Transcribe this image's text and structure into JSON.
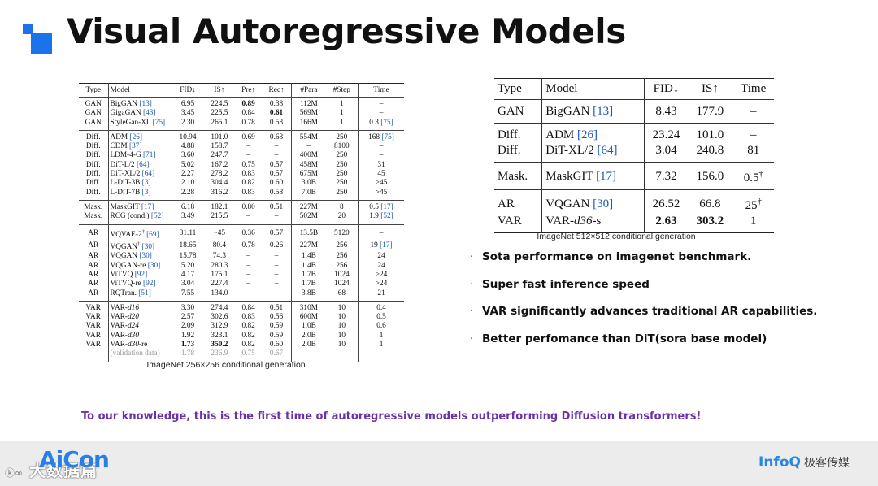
{
  "title": "Visual Autoregressive Models",
  "left_table": {
    "headers": [
      "Type",
      "Model",
      "FID↓",
      "IS↑",
      "Pre↑",
      "Rec↑",
      "#Para",
      "#Step",
      "Time"
    ],
    "groups": [
      [
        {
          "type": "GAN",
          "model": "BigGAN",
          "cite": "[13]",
          "fid": "6.95",
          "is": "224.5",
          "pre": "0.89",
          "rec": "0.38",
          "para": "112M",
          "step": "1",
          "time": "–",
          "time_cite": ""
        },
        {
          "type": "GAN",
          "model": "GigaGAN",
          "cite": "[43]",
          "fid": "3.45",
          "is": "225.5",
          "pre": "0.84",
          "rec": "0.61",
          "para": "569M",
          "step": "1",
          "time": "–",
          "time_cite": ""
        },
        {
          "type": "GAN",
          "model": "StyleGan-XL",
          "cite": "[75]",
          "fid": "2.30",
          "is": "265.1",
          "pre": "0.78",
          "rec": "0.53",
          "para": "166M",
          "step": "1",
          "time": "0.3",
          "time_cite": "[75]"
        }
      ],
      [
        {
          "type": "Diff.",
          "model": "ADM",
          "cite": "[26]",
          "fid": "10.94",
          "is": "101.0",
          "pre": "0.69",
          "rec": "0.63",
          "para": "554M",
          "step": "250",
          "time": "168",
          "time_cite": "[75]"
        },
        {
          "type": "Diff.",
          "model": "CDM",
          "cite": "[37]",
          "fid": "4.88",
          "is": "158.7",
          "pre": "–",
          "rec": "–",
          "para": "–",
          "step": "8100",
          "time": "–",
          "time_cite": ""
        },
        {
          "type": "Diff.",
          "model": "LDM-4-G",
          "cite": "[71]",
          "fid": "3.60",
          "is": "247.7",
          "pre": "–",
          "rec": "–",
          "para": "400M",
          "step": "250",
          "time": "–",
          "time_cite": ""
        },
        {
          "type": "Diff.",
          "model": "DiT-L/2",
          "cite": "[64]",
          "fid": "5.02",
          "is": "167.2",
          "pre": "0.75",
          "rec": "0.57",
          "para": "458M",
          "step": "250",
          "time": "31",
          "time_cite": ""
        },
        {
          "type": "Diff.",
          "model": "DiT-XL/2",
          "cite": "[64]",
          "fid": "2.27",
          "is": "278.2",
          "pre": "0.83",
          "rec": "0.57",
          "para": "675M",
          "step": "250",
          "time": "45",
          "time_cite": ""
        },
        {
          "type": "Diff.",
          "model": "L-DiT-3B",
          "cite": "[3]",
          "fid": "2.10",
          "is": "304.4",
          "pre": "0.82",
          "rec": "0.60",
          "para": "3.0B",
          "step": "250",
          "time": ">45",
          "time_cite": ""
        },
        {
          "type": "Diff.",
          "model": "L-DiT-7B",
          "cite": "[3]",
          "fid": "2.28",
          "is": "316.2",
          "pre": "0.83",
          "rec": "0.58",
          "para": "7.0B",
          "step": "250",
          "time": ">45",
          "time_cite": ""
        }
      ],
      [
        {
          "type": "Mask.",
          "model": "MaskGIT",
          "cite": "[17]",
          "fid": "6.18",
          "is": "182.1",
          "pre": "0.80",
          "rec": "0.51",
          "para": "227M",
          "step": "8",
          "time": "0.5",
          "time_cite": "[17]"
        },
        {
          "type": "Mask.",
          "model": "RCG (cond.)",
          "cite": "[52]",
          "fid": "3.49",
          "is": "215.5",
          "pre": "–",
          "rec": "–",
          "para": "502M",
          "step": "20",
          "time": "1.9",
          "time_cite": "[52]"
        }
      ],
      [
        {
          "type": "AR",
          "model": "VQVAE-2",
          "sup": "†",
          "cite": "[69]",
          "fid": "31.11",
          "is": "~45",
          "pre": "0.36",
          "rec": "0.57",
          "para": "13.5B",
          "step": "5120",
          "time": "–",
          "time_cite": ""
        },
        {
          "type": "AR",
          "model": "VQGAN",
          "sup": "†",
          "cite": "[30]",
          "fid": "18.65",
          "is": "80.4",
          "pre": "0.78",
          "rec": "0.26",
          "para": "227M",
          "step": "256",
          "time": "19",
          "time_cite": "[17]"
        },
        {
          "type": "AR",
          "model": "VQGAN",
          "cite": "[30]",
          "fid": "15.78",
          "is": "74.3",
          "pre": "–",
          "rec": "–",
          "para": "1.4B",
          "step": "256",
          "time": "24",
          "time_cite": ""
        },
        {
          "type": "AR",
          "model": "VQGAN-re",
          "cite": "[30]",
          "fid": "5.20",
          "is": "280.3",
          "pre": "–",
          "rec": "–",
          "para": "1.4B",
          "step": "256",
          "time": "24",
          "time_cite": ""
        },
        {
          "type": "AR",
          "model": "ViTVQ",
          "cite": "[92]",
          "fid": "4.17",
          "is": "175.1",
          "pre": "–",
          "rec": "–",
          "para": "1.7B",
          "step": "1024",
          "time": ">24",
          "time_cite": ""
        },
        {
          "type": "AR",
          "model": "ViTVQ-re",
          "cite": "[92]",
          "fid": "3.04",
          "is": "227.4",
          "pre": "–",
          "rec": "–",
          "para": "1.7B",
          "step": "1024",
          "time": ">24",
          "time_cite": ""
        },
        {
          "type": "AR",
          "model": "RQTran.",
          "cite": "[51]",
          "fid": "7.55",
          "is": "134.0",
          "pre": "–",
          "rec": "–",
          "para": "3.8B",
          "step": "68",
          "time": "21",
          "time_cite": ""
        }
      ],
      [
        {
          "type": "VAR",
          "model": "VAR-",
          "model_it": "d16",
          "fid": "3.30",
          "is": "274.4",
          "pre": "0.84",
          "rec": "0.51",
          "para": "310M",
          "step": "10",
          "time": "0.4",
          "time_cite": ""
        },
        {
          "type": "VAR",
          "model": "VAR-",
          "model_it": "d20",
          "fid": "2.57",
          "is": "302.6",
          "pre": "0.83",
          "rec": "0.56",
          "para": "600M",
          "step": "10",
          "time": "0.5",
          "time_cite": ""
        },
        {
          "type": "VAR",
          "model": "VAR-",
          "model_it": "d24",
          "fid": "2.09",
          "is": "312.9",
          "pre": "0.82",
          "rec": "0.59",
          "para": "1.0B",
          "step": "10",
          "time": "0.6",
          "time_cite": ""
        },
        {
          "type": "VAR",
          "model": "VAR-",
          "model_it": "d30",
          "fid": "1.92",
          "is": "323.1",
          "pre": "0.82",
          "rec": "0.59",
          "para": "2.0B",
          "step": "10",
          "time": "1",
          "time_cite": ""
        },
        {
          "type": "VAR",
          "model": "VAR-",
          "model_it": "d30",
          "model_tail": "-re",
          "fid": "1.73",
          "is": "350.2",
          "pre": "0.82",
          "rec": "0.60",
          "para": "2.0B",
          "step": "10",
          "time": "1",
          "time_cite": ""
        },
        {
          "type": "",
          "model": "(validation data)",
          "fid": "1.78",
          "is": "236.9",
          "pre": "0.75",
          "rec": "0.67",
          "para": "",
          "step": "",
          "time": "",
          "time_cite": "",
          "gray": true
        }
      ]
    ],
    "bold_cells": [
      "0-0-pre",
      "0-1-rec",
      "4-4-fid",
      "4-4-is"
    ],
    "caption": "ImageNet 256×256 conditional generation"
  },
  "right_table": {
    "headers": [
      "Type",
      "Model",
      "FID↓",
      "IS↑",
      "Time"
    ],
    "groups": [
      [
        {
          "type": "GAN",
          "model": "BigGAN",
          "cite": "[13]",
          "fid": "8.43",
          "is": "177.9",
          "time": "–"
        }
      ],
      [
        {
          "type": "Diff.",
          "model": "ADM",
          "cite": "[26]",
          "fid": "23.24",
          "is": "101.0",
          "time": "–"
        },
        {
          "type": "Diff.",
          "model": "DiT-XL/2",
          "cite": "[64]",
          "fid": "3.04",
          "is": "240.8",
          "time": "81"
        }
      ],
      [
        {
          "type": "Mask.",
          "model": "MaskGIT",
          "cite": "[17]",
          "fid": "7.32",
          "is": "156.0",
          "time": "0.5",
          "time_sup": "†"
        }
      ],
      [
        {
          "type": "AR",
          "model": "VQGAN",
          "cite": "[30]",
          "fid": "26.52",
          "is": "66.8",
          "time": "25",
          "time_sup": "†"
        },
        {
          "type": "VAR",
          "model": "VAR-",
          "model_it": "d36",
          "model_tail": "-s",
          "fid": "2.63",
          "is": "303.2",
          "time": "1",
          "bold": true
        }
      ]
    ],
    "caption": "ImageNet 512×512 conditional generation"
  },
  "bullets": [
    "Sota performance on imagenet benchmark.",
    "Super fast inference speed",
    "VAR significantly advances traditional AR capabilities.",
    "Better perfomance than DiT(sora base model)"
  ],
  "bullet_glyph": "·",
  "conclusion": "To our knowledge, this is the first time of autoregressive models outperforming Diffusion transformers!",
  "footer": {
    "event_logo": "AiCon",
    "watermark": "大数据篇",
    "watermark_prefix": "ⓚ∞",
    "brand": "InfoQ",
    "brand_cn": "极客传媒"
  },
  "colors": {
    "accent_blue": "#1a73e8",
    "cite_blue": "#1a56b0",
    "conclusion_purple": "#6a32a8",
    "footer_bg": "#ececec"
  }
}
